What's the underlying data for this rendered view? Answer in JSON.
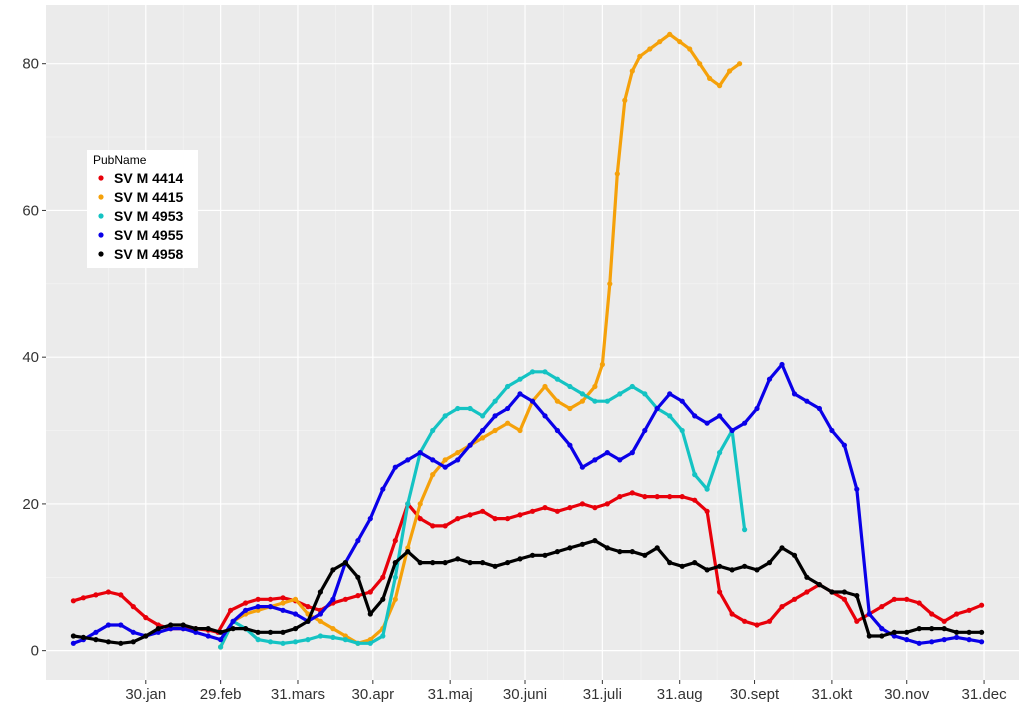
{
  "chart_data": {
    "type": "scatter",
    "title": "",
    "xlabel": "",
    "ylabel": "",
    "x_tick_labels": [
      "30.jan",
      "29.feb",
      "31.mars",
      "30.apr",
      "31.maj",
      "30.juni",
      "31.juli",
      "31.aug",
      "30.sept",
      "31.okt",
      "30.nov",
      "31.dec"
    ],
    "x_tick_days": [
      30,
      60,
      91,
      121,
      152,
      182,
      213,
      244,
      274,
      305,
      335,
      366
    ],
    "xlim": [
      -10,
      380
    ],
    "y_ticks": [
      0,
      20,
      40,
      60,
      80
    ],
    "ylim": [
      -4,
      88
    ],
    "grid": true,
    "legend": {
      "title": "PubName",
      "position": "left"
    },
    "series": [
      {
        "name": "SV M 4414",
        "color": "#e8000a",
        "x": [
          1,
          5,
          10,
          15,
          20,
          25,
          30,
          35,
          40,
          45,
          50,
          55,
          59,
          64,
          70,
          75,
          80,
          85,
          90,
          95,
          100,
          105,
          110,
          115,
          120,
          125,
          130,
          135,
          140,
          145,
          150,
          155,
          160,
          165,
          170,
          175,
          180,
          185,
          190,
          195,
          200,
          205,
          210,
          215,
          220,
          225,
          230,
          235,
          240,
          245,
          250,
          255,
          260,
          265,
          270,
          275,
          280,
          285,
          290,
          295,
          300,
          305,
          310,
          315,
          320,
          325,
          330,
          335,
          340,
          345,
          350,
          355,
          360,
          365
        ],
        "y": [
          6.8,
          7.2,
          7.6,
          8,
          7.6,
          6,
          4.5,
          3.5,
          3,
          3,
          3,
          2.8,
          2.5,
          5.5,
          6.5,
          7,
          7,
          7.2,
          6.8,
          6,
          5.5,
          6.5,
          7,
          7.5,
          8,
          10,
          15,
          20,
          18,
          17,
          17,
          18,
          18.5,
          19,
          18,
          18,
          18.5,
          19,
          19.5,
          19,
          19.5,
          20,
          19.5,
          20,
          21,
          21.5,
          21,
          21,
          21,
          21,
          20.5,
          19,
          8,
          5,
          4,
          3.5,
          4,
          6,
          7,
          8,
          9,
          8,
          7,
          4,
          5,
          6,
          7,
          7,
          6.5,
          5,
          4,
          5,
          5.5,
          6.2
        ]
      },
      {
        "name": "SV M 4415",
        "color": "#f5a10a",
        "x": [
          60,
          65,
          70,
          75,
          80,
          85,
          90,
          95,
          100,
          105,
          110,
          115,
          120,
          125,
          130,
          135,
          140,
          145,
          150,
          155,
          160,
          165,
          170,
          175,
          180,
          185,
          190,
          195,
          200,
          205,
          210,
          213,
          216,
          219,
          222,
          225,
          228,
          232,
          236,
          240,
          244,
          248,
          252,
          256,
          260,
          264,
          268
        ],
        "y": [
          0.5,
          4,
          5,
          5.5,
          6,
          6.5,
          7,
          5,
          4,
          3,
          2,
          1,
          1.5,
          3,
          7,
          14,
          20,
          24,
          26,
          27,
          28,
          29,
          30,
          31,
          30,
          34,
          36,
          34,
          33,
          34,
          36,
          39,
          50,
          65,
          75,
          79,
          81,
          82,
          83,
          84,
          83,
          82,
          80,
          78,
          77,
          79,
          80
        ]
      },
      {
        "name": "SV M 4953",
        "color": "#14c3c3",
        "x": [
          60,
          65,
          70,
          75,
          80,
          85,
          90,
          95,
          100,
          105,
          110,
          115,
          120,
          125,
          130,
          135,
          140,
          145,
          150,
          155,
          160,
          165,
          170,
          175,
          180,
          185,
          190,
          195,
          200,
          205,
          210,
          215,
          220,
          225,
          230,
          235,
          240,
          245,
          250,
          255,
          260,
          265,
          270
        ],
        "y": [
          0.5,
          4,
          3,
          1.5,
          1.2,
          1,
          1.2,
          1.5,
          2,
          1.8,
          1.5,
          1,
          1,
          2,
          10,
          20,
          27,
          30,
          32,
          33,
          33,
          32,
          34,
          36,
          37,
          38,
          38,
          37,
          36,
          35,
          34,
          34,
          35,
          36,
          35,
          33,
          32,
          30,
          24,
          22,
          27,
          30,
          16.5
        ]
      },
      {
        "name": "SV M 4955",
        "color": "#0a00e8",
        "x": [
          1,
          5,
          10,
          15,
          20,
          25,
          30,
          35,
          40,
          45,
          50,
          55,
          60,
          65,
          70,
          75,
          80,
          85,
          90,
          95,
          100,
          105,
          110,
          115,
          120,
          125,
          130,
          135,
          140,
          145,
          150,
          155,
          160,
          165,
          170,
          175,
          180,
          185,
          190,
          195,
          200,
          205,
          210,
          215,
          220,
          225,
          230,
          235,
          240,
          245,
          250,
          255,
          260,
          265,
          270,
          275,
          280,
          285,
          290,
          295,
          300,
          305,
          310,
          315,
          320,
          325,
          330,
          335,
          340,
          345,
          350,
          355,
          360,
          365
        ],
        "y": [
          1,
          1.5,
          2.5,
          3.5,
          3.5,
          2.5,
          2,
          2.5,
          3,
          3,
          2.5,
          2,
          1.5,
          4,
          5.5,
          6,
          6,
          5.5,
          5,
          4,
          5,
          7,
          12,
          15,
          18,
          22,
          25,
          26,
          27,
          26,
          25,
          26,
          28,
          30,
          32,
          33,
          35,
          34,
          32,
          30,
          28,
          25,
          26,
          27,
          26,
          27,
          30,
          33,
          35,
          34,
          32,
          31,
          32,
          30,
          31,
          33,
          37,
          39,
          35,
          34,
          33,
          30,
          28,
          22,
          5,
          3,
          2,
          1.5,
          1,
          1.2,
          1.5,
          1.8,
          1.5,
          1.2
        ]
      },
      {
        "name": "SV M 4958",
        "color": "#000000",
        "x": [
          1,
          5,
          10,
          15,
          20,
          25,
          30,
          35,
          40,
          45,
          50,
          55,
          60,
          65,
          70,
          75,
          80,
          85,
          90,
          95,
          100,
          105,
          110,
          115,
          120,
          125,
          130,
          135,
          140,
          145,
          150,
          155,
          160,
          165,
          170,
          175,
          180,
          185,
          190,
          195,
          200,
          205,
          210,
          215,
          220,
          225,
          230,
          235,
          240,
          245,
          250,
          255,
          260,
          265,
          270,
          275,
          280,
          285,
          290,
          295,
          300,
          305,
          310,
          315,
          320,
          325,
          330,
          335,
          340,
          345,
          350,
          355,
          360,
          365
        ],
        "y": [
          2,
          1.8,
          1.5,
          1.2,
          1,
          1.2,
          2,
          3,
          3.5,
          3.5,
          3,
          3,
          2.5,
          3,
          3,
          2.5,
          2.5,
          2.5,
          3,
          4,
          8,
          11,
          12,
          10,
          5,
          7,
          12,
          13.5,
          12,
          12,
          12,
          12.5,
          12,
          12,
          11.5,
          12,
          12.5,
          13,
          13,
          13.5,
          14,
          14.5,
          15,
          14,
          13.5,
          13.5,
          13,
          14,
          12,
          11.5,
          12,
          11,
          11.5,
          11,
          11.5,
          11,
          12,
          14,
          13,
          10,
          9,
          8,
          8,
          7.5,
          2,
          2,
          2.5,
          2.5,
          3,
          3,
          3,
          2.5,
          2.5,
          2.5
        ]
      }
    ]
  }
}
